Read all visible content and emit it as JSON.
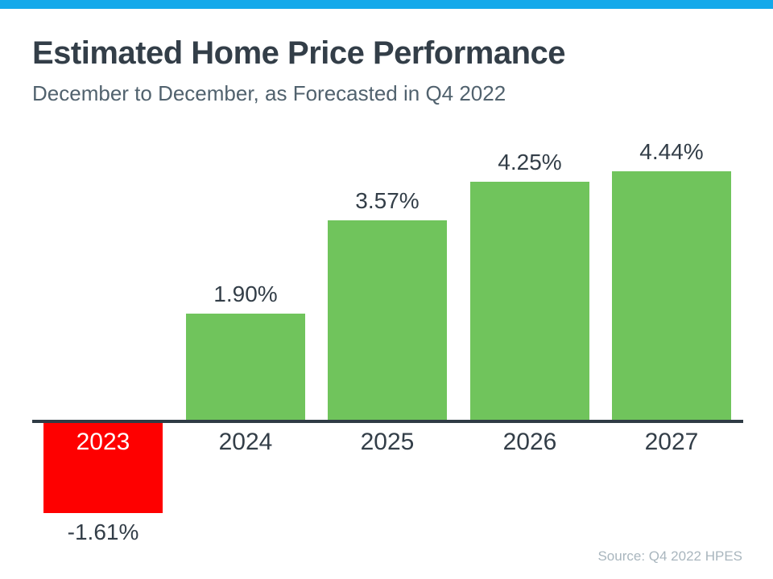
{
  "page": {
    "top_bar_color": "#15A9EA",
    "title": "Estimated Home Price Performance",
    "subtitle": "December to December, as Forecasted in Q4 2022",
    "source": "Source: Q4 2022 HPES"
  },
  "chart_data": {
    "type": "bar",
    "title": "Estimated Home Price Performance",
    "subtitle": "December to December, as Forecasted in Q4 2022",
    "categories": [
      "2023",
      "2024",
      "2025",
      "2026",
      "2027"
    ],
    "values": [
      -1.61,
      1.9,
      3.57,
      4.25,
      4.44
    ],
    "value_labels": [
      "-1.61%",
      "1.90%",
      "3.57%",
      "4.25%",
      "4.44%"
    ],
    "bars": [
      {
        "year": "2023",
        "value": -1.61,
        "value_label": "-1.61%",
        "color": "#FE0000",
        "year_label_position": "inside-bar",
        "year_label_color": "#FFFFFF"
      },
      {
        "year": "2024",
        "value": 1.9,
        "value_label": "1.90%",
        "color": "#70C45C",
        "year_label_position": "below-axis",
        "year_label_color": "#333E48"
      },
      {
        "year": "2025",
        "value": 3.57,
        "value_label": "3.57%",
        "color": "#70C45C",
        "year_label_position": "below-axis",
        "year_label_color": "#333E48"
      },
      {
        "year": "2026",
        "value": 4.25,
        "value_label": "4.25%",
        "color": "#70C45C",
        "year_label_position": "below-axis",
        "year_label_color": "#333E48"
      },
      {
        "year": "2027",
        "value": 4.44,
        "value_label": "4.44%",
        "color": "#70C45C",
        "year_label_position": "below-axis",
        "year_label_color": "#333E48"
      }
    ],
    "colors": {
      "positive": "#70C45C",
      "negative": "#FE0000",
      "axis": "#2F3B45",
      "labels": "#333E48"
    },
    "ylim": [
      -2,
      5
    ],
    "grid": false,
    "legend": false,
    "xlabel": "",
    "ylabel": "",
    "source": "Source: Q4 2022 HPES"
  }
}
